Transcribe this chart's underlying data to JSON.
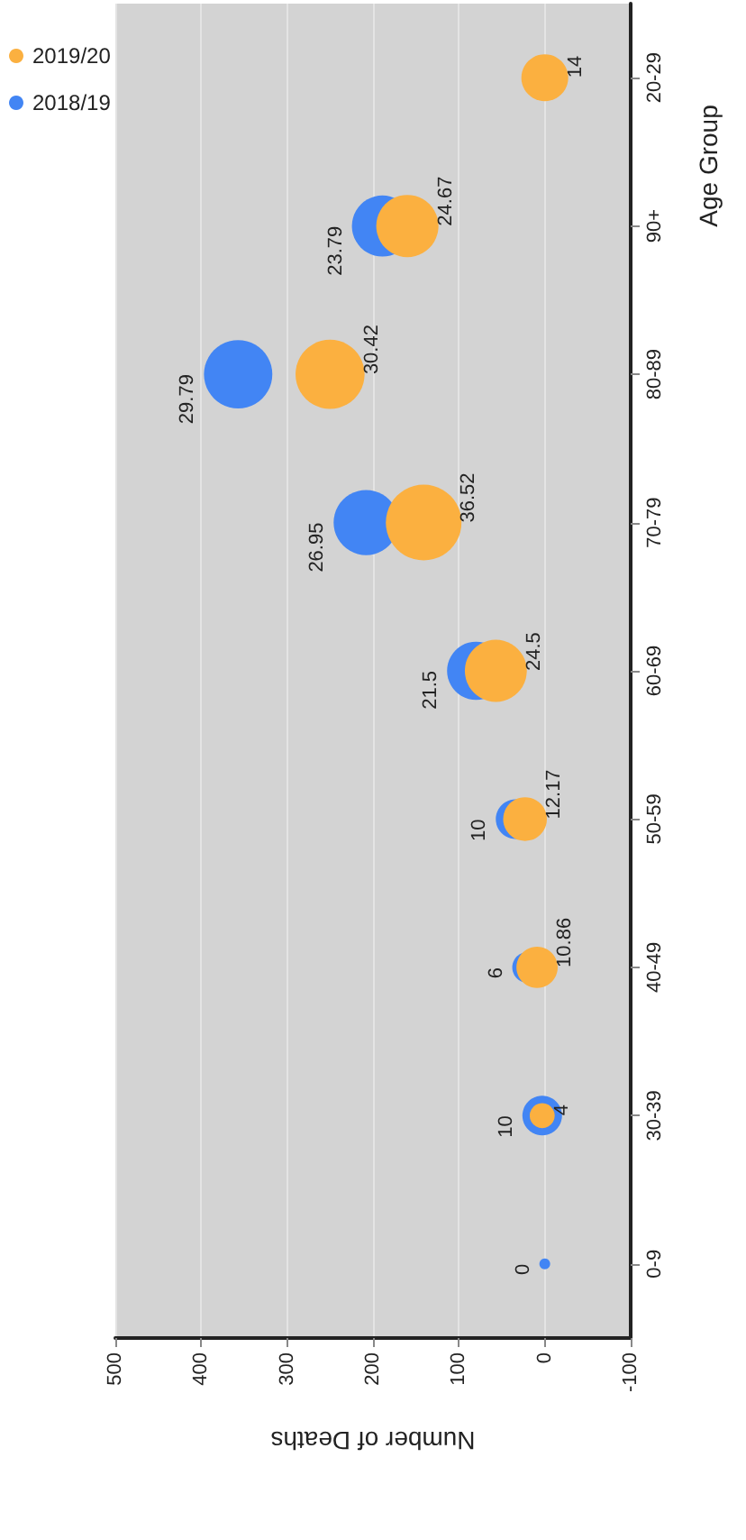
{
  "chart_data": {
    "type": "bubble",
    "orientation": "horizontal",
    "xlabel": "Number of Deaths",
    "ylabel": "Age Group",
    "categories": [
      "20-29",
      "90+",
      "80-89",
      "70-79",
      "60-69",
      "50-59",
      "40-49",
      "30-39",
      "0-9"
    ],
    "series": [
      {
        "name": "2018/19",
        "color": "#4285f4",
        "values": [
          null,
          189,
          357,
          208,
          80,
          34,
          20,
          3,
          0
        ],
        "sizes": [
          null,
          23.79,
          29.79,
          26.95,
          21.5,
          10,
          6,
          10,
          null
        ],
        "value_labels": [
          null,
          "23.79",
          "29.79",
          "26.95",
          "21.5",
          "10",
          "6",
          "10",
          "0"
        ]
      },
      {
        "name": "2019/20",
        "color": "#fbb040",
        "values": [
          0,
          160,
          250,
          141,
          57,
          23,
          9,
          3,
          null
        ],
        "sizes": [
          14,
          24.67,
          30.42,
          36.52,
          24.5,
          12.17,
          10.86,
          4,
          null
        ],
        "value_labels": [
          "14",
          "24.67",
          "30.42",
          "36.52",
          "24.5",
          "12.17",
          "10.86",
          "4",
          null
        ]
      }
    ],
    "xlim": [
      500,
      -100
    ],
    "xticks": [
      500,
      400,
      300,
      200,
      100,
      0,
      -100
    ],
    "grid": "x",
    "legend": "top left"
  }
}
